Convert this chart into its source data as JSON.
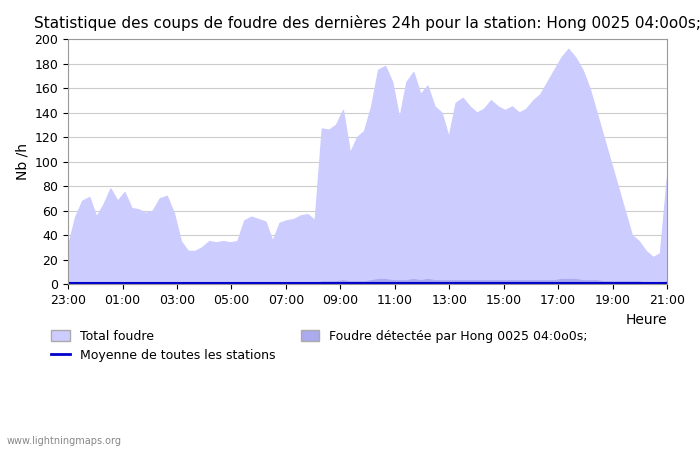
{
  "title": "Statistique des coups de foudre des dernières 24h pour la station: Hong 0025 04:0o0s;",
  "xlabel": "Heure",
  "ylabel": "Nb /h",
  "ylim": [
    0,
    200
  ],
  "yticks": [
    0,
    20,
    40,
    60,
    80,
    100,
    120,
    140,
    160,
    180,
    200
  ],
  "xtick_labels": [
    "23:00",
    "01:00",
    "03:00",
    "05:00",
    "07:00",
    "09:00",
    "11:00",
    "13:00",
    "15:00",
    "17:00",
    "19:00",
    "21:00"
  ],
  "watermark": "www.lightningmaps.org",
  "legend_total": "Total foudre",
  "legend_moyenne": "Moyenne de toutes les stations",
  "legend_detected": "Foudre détectée par Hong 0025 04:0o0s;",
  "total_color": "#ccccff",
  "detected_color": "#aaaaee",
  "moyenne_color": "#0000cc",
  "bg_color": "#ffffff",
  "total_foudre": [
    32,
    55,
    68,
    71,
    55,
    65,
    78,
    68,
    75,
    62,
    61,
    58,
    60,
    70,
    72,
    58,
    35,
    27,
    27,
    30,
    35,
    34,
    35,
    34,
    35,
    52,
    55,
    53,
    51,
    35,
    50,
    52,
    53,
    56,
    57,
    52,
    127,
    126,
    130,
    142,
    107,
    120,
    125,
    145,
    175,
    178,
    165,
    135,
    165,
    173,
    155,
    162,
    145,
    140,
    120,
    148,
    152,
    145,
    140,
    143,
    150,
    145,
    142,
    145,
    140,
    143,
    150,
    155,
    165,
    175,
    185,
    192,
    185,
    175,
    160,
    140,
    120,
    100,
    80,
    60,
    40,
    35,
    27,
    22,
    25,
    88
  ],
  "detected_foudre": [
    1,
    1,
    1,
    1,
    1,
    0,
    1,
    1,
    1,
    1,
    1,
    1,
    1,
    1,
    0,
    1,
    1,
    1,
    0,
    1,
    0,
    0,
    0,
    0,
    0,
    0,
    0,
    0,
    0,
    0,
    0,
    0,
    0,
    1,
    0,
    0,
    2,
    2,
    2,
    3,
    2,
    2,
    2,
    3,
    4,
    4,
    3,
    3,
    3,
    4,
    3,
    4,
    3,
    3,
    3,
    3,
    3,
    3,
    3,
    3,
    3,
    3,
    3,
    3,
    3,
    3,
    3,
    3,
    3,
    3,
    4,
    4,
    4,
    3,
    3,
    3,
    2,
    2,
    2,
    2,
    2,
    2,
    1,
    1,
    1,
    2
  ],
  "moyenne_foudre": [
    0.5,
    0.5,
    0.5,
    0.5,
    0.5,
    0.5,
    0.5,
    0.5,
    0.5,
    0.5,
    0.5,
    0.5,
    0.5,
    0.5,
    0.5,
    0.5,
    0.5,
    0.5,
    0.5,
    0.5,
    0.5,
    0.5,
    0.5,
    0.5,
    0.5,
    0.5,
    0.5,
    0.5,
    0.5,
    0.5,
    0.5,
    0.5,
    0.5,
    0.5,
    0.5,
    0.5,
    0.5,
    0.5,
    0.5,
    0.5,
    0.5,
    0.5,
    0.5,
    0.5,
    0.5,
    0.5,
    0.5,
    0.5,
    0.5,
    0.5,
    0.5,
    0.5,
    0.5,
    0.5,
    0.5,
    0.5,
    0.5,
    0.5,
    0.5,
    0.5,
    0.5,
    0.5,
    0.5,
    0.5,
    0.5,
    0.5,
    0.5,
    0.5,
    0.5,
    0.5,
    0.5,
    0.5,
    0.5,
    0.5,
    0.5,
    0.5,
    0.5,
    0.5,
    0.5,
    0.5,
    0.5,
    0.5,
    0.5,
    0.5,
    0.5,
    0.5
  ]
}
